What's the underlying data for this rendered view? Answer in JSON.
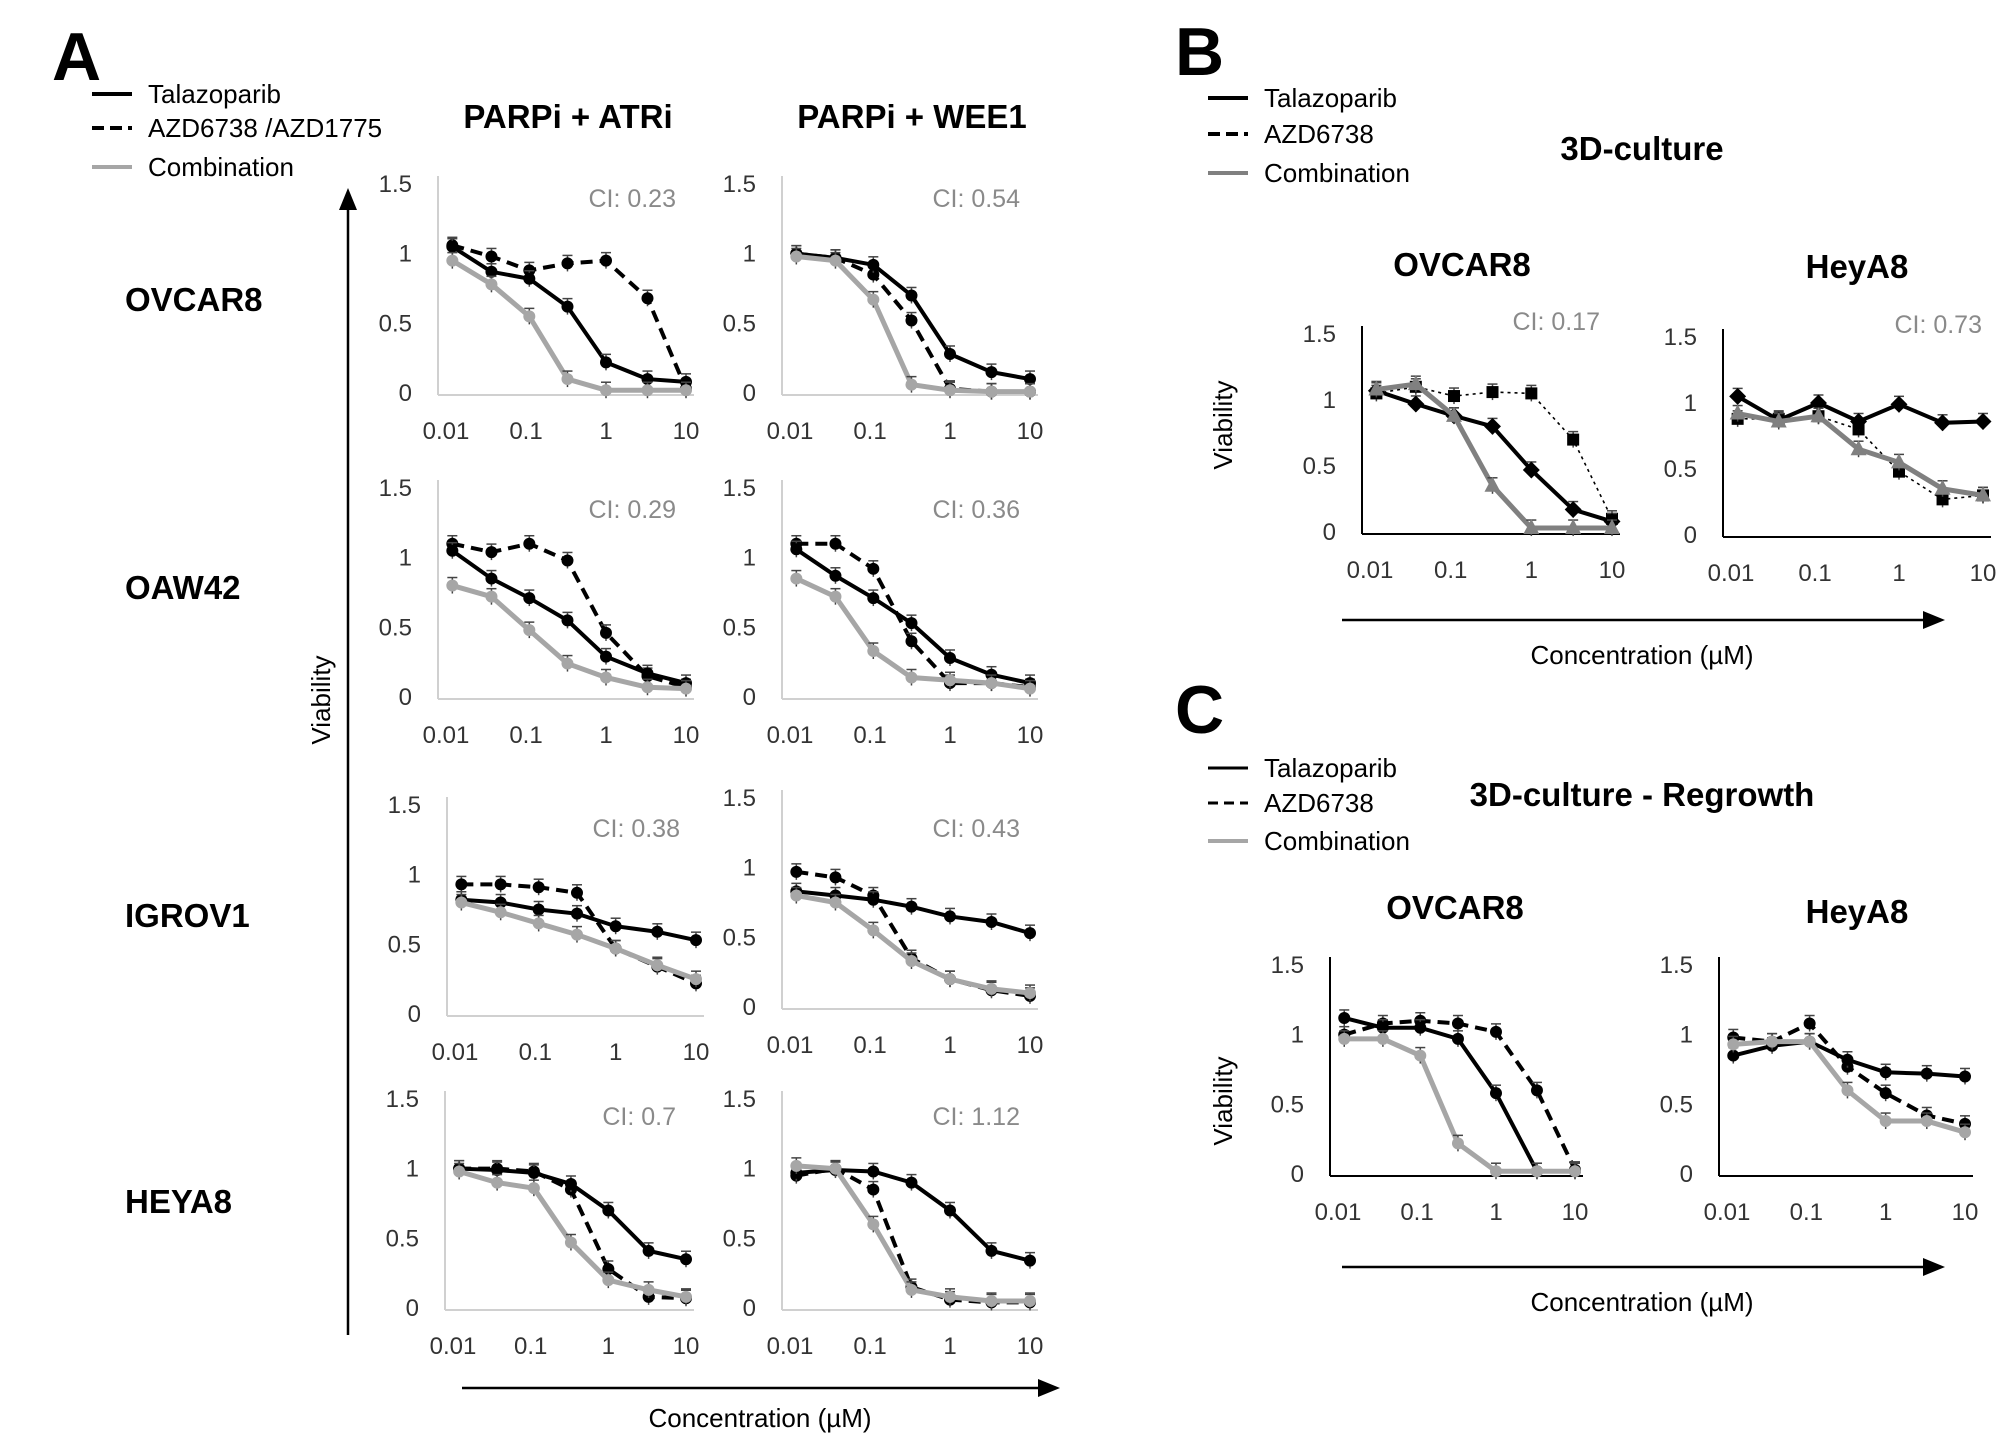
{
  "panels": {
    "A": {
      "letter": "A",
      "legend": [
        "Talazoparib",
        "AZD6738  /AZD1775",
        "Combination"
      ],
      "col_titles": [
        "PARPi + ATRi",
        "PARPi + WEE1"
      ],
      "row_labels": [
        "OVCAR8",
        "OAW42",
        "IGROV1",
        "HEYA8"
      ],
      "ylabel": "Viability",
      "xlabel": "Concentration (µM)"
    },
    "B": {
      "letter": "B",
      "legend": [
        "Talazoparib",
        "AZD6738",
        "Combination"
      ],
      "title": "3D-culture",
      "col_titles": [
        "OVCAR8",
        "HeyA8"
      ],
      "ylabel": "Viability",
      "xlabel": "Concentration (µM)"
    },
    "C": {
      "letter": "C",
      "legend": [
        "Talazoparib",
        "AZD6738",
        "Combination"
      ],
      "title": "3D-culture - Regrowth",
      "col_titles": [
        "OVCAR8",
        "HeyA8"
      ],
      "ylabel": "Viability",
      "xlabel": "Concentration (µM)"
    }
  },
  "styles": {
    "talazoparib": {
      "color": "#000000",
      "dash": "solid"
    },
    "second_drug": {
      "color": "#000000",
      "dash": "dashed"
    },
    "combination": {
      "color": "#a6a6a6",
      "dash": "solid"
    }
  },
  "chart_data": [
    {
      "id": "A-OVCAR8-ATRi",
      "type": "line",
      "ci_label": "CI:  0.23",
      "x": [
        0.012,
        0.037,
        0.11,
        0.33,
        1,
        3.3,
        10
      ],
      "xscale": "log",
      "ylim": [
        0,
        1.5
      ],
      "yticks": [
        "0",
        "0.5",
        "1",
        "1.5"
      ],
      "xticks": [
        "0.01",
        "0.1",
        "1",
        "10"
      ],
      "series": [
        {
          "name": "Talazoparib",
          "values": [
            1.05,
            0.87,
            0.82,
            0.62,
            0.22,
            0.1,
            0.08
          ]
        },
        {
          "name": "AZD6738",
          "values": [
            1.06,
            0.98,
            0.88,
            0.93,
            0.95,
            0.68,
            0.03
          ]
        },
        {
          "name": "Combination",
          "values": [
            0.95,
            0.78,
            0.55,
            0.1,
            0.02,
            0.02,
            0.02
          ]
        }
      ]
    },
    {
      "id": "A-OVCAR8-WEE1",
      "type": "line",
      "ci_label": "CI: 0.54",
      "x": [
        0.012,
        0.037,
        0.11,
        0.33,
        1,
        3.3,
        10
      ],
      "xscale": "log",
      "ylim": [
        0,
        1.5
      ],
      "yticks": [
        "0",
        "0.5",
        "1",
        "1.5"
      ],
      "xticks": [
        "0.01",
        "0.1",
        "1",
        "10"
      ],
      "series": [
        {
          "name": "Talazoparib",
          "values": [
            1.0,
            0.97,
            0.92,
            0.7,
            0.28,
            0.15,
            0.1
          ]
        },
        {
          "name": "AZD1775",
          "values": [
            1.0,
            0.97,
            0.85,
            0.52,
            0.03,
            0.01,
            0.01
          ]
        },
        {
          "name": "Combination",
          "values": [
            0.98,
            0.95,
            0.67,
            0.06,
            0.02,
            0.01,
            0.01
          ]
        }
      ]
    },
    {
      "id": "A-OAW42-ATRi",
      "type": "line",
      "ci_label": "CI: 0.29",
      "x": [
        0.012,
        0.037,
        0.11,
        0.33,
        1,
        3.3,
        10
      ],
      "xscale": "log",
      "ylim": [
        0,
        1.5
      ],
      "yticks": [
        "0",
        "0.5",
        "1",
        "1.5"
      ],
      "xticks": [
        "0.01",
        "0.1",
        "1",
        "10"
      ],
      "series": [
        {
          "name": "Talazoparib",
          "values": [
            1.05,
            0.85,
            0.71,
            0.55,
            0.29,
            0.17,
            0.1
          ]
        },
        {
          "name": "AZD6738",
          "values": [
            1.1,
            1.04,
            1.1,
            0.98,
            0.46,
            0.15,
            0.07
          ]
        },
        {
          "name": "Combination",
          "values": [
            0.8,
            0.72,
            0.48,
            0.24,
            0.14,
            0.07,
            0.06
          ]
        }
      ]
    },
    {
      "id": "A-OAW42-WEE1",
      "type": "line",
      "ci_label": "CI: 0.36",
      "x": [
        0.012,
        0.037,
        0.11,
        0.33,
        1,
        3.3,
        10
      ],
      "xscale": "log",
      "ylim": [
        0,
        1.5
      ],
      "yticks": [
        "0",
        "0.5",
        "1",
        "1.5"
      ],
      "xticks": [
        "0.01",
        "0.1",
        "1",
        "10"
      ],
      "series": [
        {
          "name": "Talazoparib",
          "values": [
            1.06,
            0.87,
            0.71,
            0.53,
            0.28,
            0.16,
            0.1
          ]
        },
        {
          "name": "AZD1775",
          "values": [
            1.1,
            1.1,
            0.92,
            0.4,
            0.1,
            0.1,
            0.07
          ]
        },
        {
          "name": "Combination",
          "values": [
            0.85,
            0.72,
            0.33,
            0.14,
            0.12,
            0.1,
            0.06
          ]
        }
      ]
    },
    {
      "id": "A-IGROV1-ATRi",
      "type": "line",
      "ci_label": "CI: 0.38",
      "x": [
        0.012,
        0.037,
        0.11,
        0.33,
        1,
        3.3,
        10
      ],
      "xscale": "log",
      "ylim": [
        0,
        1.5
      ],
      "yticks": [
        "0",
        "0.5",
        "1",
        "1.5"
      ],
      "xticks": [
        "0.01",
        "0.1",
        "1",
        "10"
      ],
      "series": [
        {
          "name": "Talazoparib",
          "values": [
            0.82,
            0.8,
            0.75,
            0.72,
            0.63,
            0.59,
            0.53
          ]
        },
        {
          "name": "AZD6738",
          "values": [
            0.93,
            0.93,
            0.91,
            0.87,
            0.47,
            0.34,
            0.22
          ]
        },
        {
          "name": "Combination",
          "values": [
            0.8,
            0.73,
            0.65,
            0.57,
            0.47,
            0.35,
            0.25
          ]
        }
      ]
    },
    {
      "id": "A-IGROV1-WEE1",
      "type": "line",
      "ci_label": "CI: 0.43",
      "x": [
        0.012,
        0.037,
        0.11,
        0.33,
        1,
        3.3,
        10
      ],
      "xscale": "log",
      "ylim": [
        0,
        1.5
      ],
      "yticks": [
        "0",
        "0.5",
        "1",
        "1.5"
      ],
      "xticks": [
        "0.01",
        "0.1",
        "1",
        "10"
      ],
      "series": [
        {
          "name": "Talazoparib",
          "values": [
            0.83,
            0.8,
            0.77,
            0.72,
            0.65,
            0.61,
            0.53
          ]
        },
        {
          "name": "AZD1775",
          "values": [
            0.97,
            0.93,
            0.8,
            0.35,
            0.2,
            0.12,
            0.08
          ]
        },
        {
          "name": "Combination",
          "values": [
            0.8,
            0.75,
            0.55,
            0.33,
            0.2,
            0.13,
            0.1
          ]
        }
      ]
    },
    {
      "id": "A-HEYA8-ATRi",
      "type": "line",
      "ci_label": "CI: 0.7",
      "x": [
        0.012,
        0.037,
        0.11,
        0.33,
        1,
        3.3,
        10
      ],
      "xscale": "log",
      "ylim": [
        0,
        1.5
      ],
      "yticks": [
        "0",
        "0.5",
        "1",
        "1.5"
      ],
      "xticks": [
        "0.01",
        "0.1",
        "1",
        "10"
      ],
      "series": [
        {
          "name": "Talazoparib",
          "values": [
            1.0,
            0.99,
            0.97,
            0.89,
            0.7,
            0.41,
            0.35
          ]
        },
        {
          "name": "AZD6738",
          "values": [
            1.0,
            1.0,
            0.98,
            0.85,
            0.28,
            0.08,
            0.07
          ]
        },
        {
          "name": "Combination",
          "values": [
            0.98,
            0.9,
            0.86,
            0.47,
            0.2,
            0.13,
            0.08
          ]
        }
      ]
    },
    {
      "id": "A-HEYA8-WEE1",
      "type": "line",
      "ci_label": "CI: 1.12",
      "x": [
        0.012,
        0.037,
        0.11,
        0.33,
        1,
        3.3,
        10
      ],
      "xscale": "log",
      "ylim": [
        0,
        1.5
      ],
      "yticks": [
        "0",
        "0.5",
        "1",
        "1.5"
      ],
      "xticks": [
        "0.01",
        "0.1",
        "1",
        "10"
      ],
      "series": [
        {
          "name": "Talazoparib",
          "values": [
            0.97,
            0.99,
            0.98,
            0.9,
            0.7,
            0.41,
            0.34
          ]
        },
        {
          "name": "AZD1775",
          "values": [
            0.95,
            1.0,
            0.85,
            0.15,
            0.06,
            0.04,
            0.04
          ]
        },
        {
          "name": "Combination",
          "values": [
            1.02,
            1.0,
            0.6,
            0.13,
            0.08,
            0.05,
            0.05
          ]
        }
      ]
    },
    {
      "id": "B-OVCAR8",
      "type": "line",
      "ci_label": "CI:  0.17",
      "x": [
        0.012,
        0.037,
        0.11,
        0.33,
        1,
        3.3,
        10
      ],
      "xscale": "log",
      "ylim": [
        0,
        1.5
      ],
      "yticks": [
        "0",
        "0.5",
        "1",
        "1.5"
      ],
      "xticks": [
        "0.01",
        "0.1",
        "1",
        "10"
      ],
      "series": [
        {
          "name": "Talazoparib",
          "values": [
            1.07,
            0.97,
            0.88,
            0.8,
            0.47,
            0.17,
            0.08
          ]
        },
        {
          "name": "AZD6738",
          "values": [
            1.05,
            1.1,
            1.03,
            1.06,
            1.05,
            0.7,
            0.1
          ]
        },
        {
          "name": "Combination",
          "values": [
            1.08,
            1.12,
            0.88,
            0.35,
            0.03,
            0.03,
            0.03
          ]
        }
      ]
    },
    {
      "id": "B-HeyA8",
      "type": "line",
      "ci_label": "CI: 0.73",
      "x": [
        0.012,
        0.037,
        0.11,
        0.33,
        1,
        3.3,
        10
      ],
      "xscale": "log",
      "ylim": [
        0,
        1.5
      ],
      "yticks": [
        "0",
        "0.5",
        "1",
        "1.5"
      ],
      "xticks": [
        "0.01",
        "0.1",
        "1",
        "10"
      ],
      "series": [
        {
          "name": "Talazoparib",
          "values": [
            1.05,
            0.87,
            1.0,
            0.86,
            0.99,
            0.85,
            0.86
          ]
        },
        {
          "name": "AZD6738",
          "values": [
            0.88,
            0.88,
            0.9,
            0.8,
            0.48,
            0.27,
            0.3
          ]
        },
        {
          "name": "Combination",
          "values": [
            0.92,
            0.86,
            0.9,
            0.65,
            0.55,
            0.35,
            0.3
          ]
        }
      ]
    },
    {
      "id": "C-OVCAR8",
      "type": "line",
      "x": [
        0.012,
        0.037,
        0.11,
        0.33,
        1,
        3.3,
        10
      ],
      "xscale": "log",
      "ylim": [
        0,
        1.5
      ],
      "yticks": [
        "0",
        "0.5",
        "1",
        "1.5"
      ],
      "xticks": [
        "0.01",
        "0.1",
        "1",
        "10"
      ],
      "series": [
        {
          "name": "Talazoparib",
          "values": [
            1.12,
            1.05,
            1.05,
            0.97,
            0.58,
            0.02,
            0.02
          ]
        },
        {
          "name": "AZD6738",
          "values": [
            1.0,
            1.08,
            1.1,
            1.08,
            1.02,
            0.6,
            0.03
          ]
        },
        {
          "name": "Combination",
          "values": [
            0.97,
            0.97,
            0.85,
            0.22,
            0.02,
            0.02,
            0.02
          ]
        }
      ]
    },
    {
      "id": "C-HeyA8",
      "type": "line",
      "x": [
        0.012,
        0.037,
        0.11,
        0.33,
        1,
        3.3,
        10
      ],
      "xscale": "log",
      "ylim": [
        0,
        1.5
      ],
      "yticks": [
        "0",
        "0.5",
        "1",
        "1.5"
      ],
      "xticks": [
        "0.01",
        "0.1",
        "1",
        "10"
      ],
      "series": [
        {
          "name": "Talazoparib",
          "values": [
            0.85,
            0.92,
            0.95,
            0.82,
            0.73,
            0.72,
            0.7
          ]
        },
        {
          "name": "AZD6738",
          "values": [
            0.98,
            0.95,
            1.08,
            0.77,
            0.58,
            0.42,
            0.36
          ]
        },
        {
          "name": "Combination",
          "values": [
            0.93,
            0.95,
            0.95,
            0.6,
            0.38,
            0.38,
            0.3
          ]
        }
      ]
    }
  ]
}
